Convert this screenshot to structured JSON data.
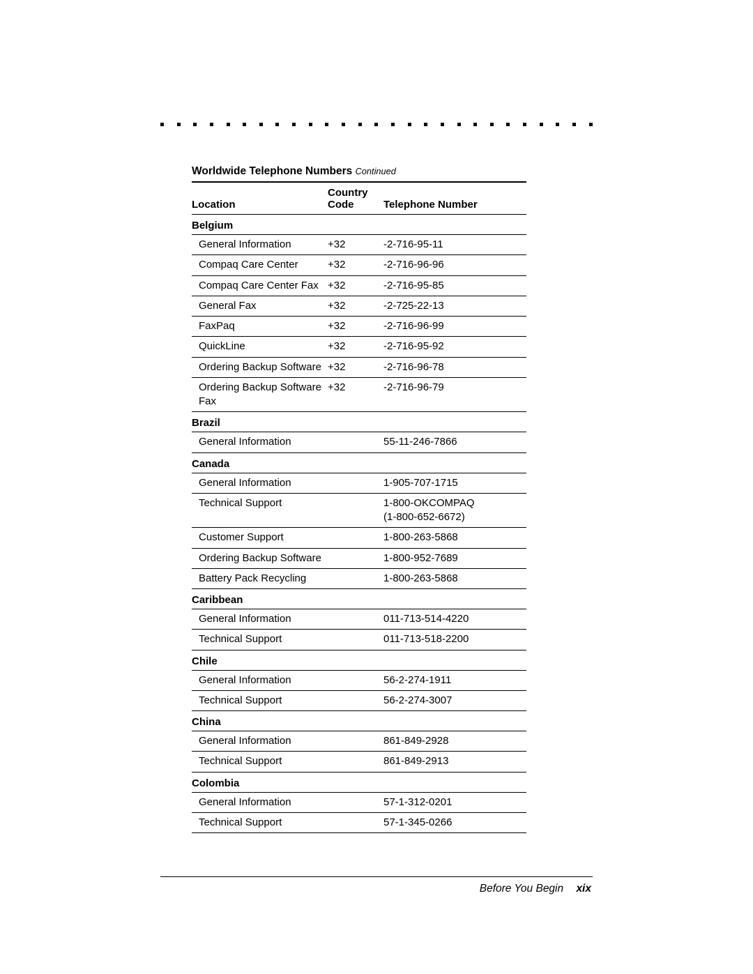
{
  "title": {
    "main": "Worldwide Telephone Numbers",
    "continued": "Continued"
  },
  "headers": {
    "location": "Location",
    "code_l1": "Country",
    "code_l2": "Code",
    "phone": "Telephone Number"
  },
  "dot_count": 27,
  "sections": [
    {
      "country": "Belgium",
      "entries": [
        {
          "label": "General Information",
          "code": "+32",
          "phone": "-2-716-95-11"
        },
        {
          "label": "Compaq Care Center",
          "code": "+32",
          "phone": "-2-716-96-96"
        },
        {
          "label": "Compaq Care Center Fax",
          "code": "+32",
          "phone": "-2-716-95-85"
        },
        {
          "label": "General Fax",
          "code": "+32",
          "phone": "-2-725-22-13"
        },
        {
          "label": "FaxPaq",
          "code": "+32",
          "phone": "-2-716-96-99"
        },
        {
          "label": "QuickLine",
          "code": "+32",
          "phone": "-2-716-95-92"
        },
        {
          "label": "Ordering Backup Software",
          "code": "+32",
          "phone": "-2-716-96-78"
        },
        {
          "label": "Ordering Backup Software Fax",
          "code": "+32",
          "phone": "-2-716-96-79"
        }
      ]
    },
    {
      "country": "Brazil",
      "entries": [
        {
          "label": "General Information",
          "code": "",
          "phone": "55-11-246-7866"
        }
      ]
    },
    {
      "country": "Canada",
      "entries": [
        {
          "label": "General Information",
          "code": "",
          "phone": "1-905-707-1715"
        },
        {
          "label": "Technical Support",
          "code": "",
          "phone": "1-800-OKCOMPAQ\n(1-800-652-6672)"
        },
        {
          "label": "Customer Support",
          "code": "",
          "phone": "1-800-263-5868"
        },
        {
          "label": "Ordering Backup Software",
          "code": "",
          "phone": "1-800-952-7689"
        },
        {
          "label": "Battery Pack Recycling",
          "code": "",
          "phone": "1-800-263-5868"
        }
      ]
    },
    {
      "country": "Caribbean",
      "entries": [
        {
          "label": "General Information",
          "code": "",
          "phone": "011-713-514-4220"
        },
        {
          "label": "Technical Support",
          "code": "",
          "phone": "011-713-518-2200"
        }
      ]
    },
    {
      "country": "Chile",
      "entries": [
        {
          "label": "General Information",
          "code": "",
          "phone": "56-2-274-1911"
        },
        {
          "label": "Technical Support",
          "code": "",
          "phone": "56-2-274-3007"
        }
      ]
    },
    {
      "country": "China",
      "entries": [
        {
          "label": "General Information",
          "code": "",
          "phone": "861-849-2928"
        },
        {
          "label": "Technical Support",
          "code": "",
          "phone": "861-849-2913"
        }
      ]
    },
    {
      "country": "Colombia",
      "entries": [
        {
          "label": "General Information",
          "code": "",
          "phone": "57-1-312-0201"
        },
        {
          "label": "Technical Support",
          "code": "",
          "phone": "57-1-345-0266"
        }
      ]
    }
  ],
  "footer": {
    "section": "Before You Begin",
    "page_num": "xix"
  },
  "colors": {
    "text": "#000000",
    "background": "#ffffff"
  }
}
